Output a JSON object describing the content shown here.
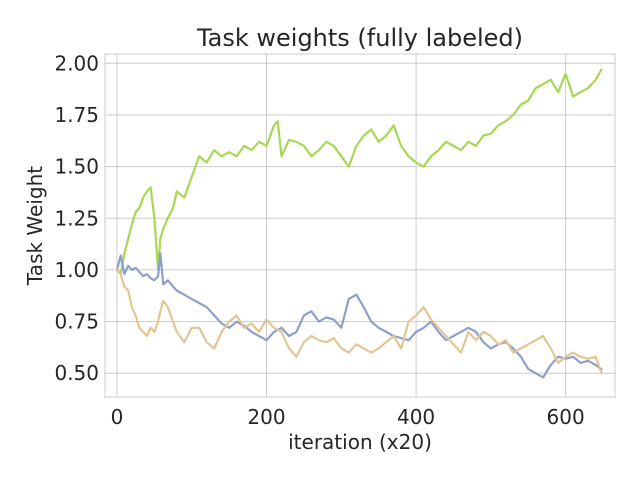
{
  "chart_data": {
    "type": "line",
    "title": "Task weights (fully labeled)",
    "xlabel": "iteration (x20)",
    "ylabel": "Task Weight",
    "xlim": [
      -16,
      666
    ],
    "ylim": [
      0.385,
      2.045
    ],
    "xticks": [
      0,
      200,
      400,
      600
    ],
    "xtick_labels": [
      "0",
      "200",
      "400",
      "600"
    ],
    "yticks": [
      0.5,
      0.75,
      1.0,
      1.25,
      1.5,
      1.75,
      2.0
    ],
    "ytick_labels": [
      "0.50",
      "0.75",
      "1.00",
      "1.25",
      "1.50",
      "1.75",
      "2.00"
    ],
    "grid": true,
    "series": [
      {
        "color": "#a6d854",
        "x": [
          0,
          5,
          10,
          15,
          20,
          25,
          30,
          35,
          40,
          45,
          50,
          55,
          58,
          62,
          68,
          75,
          80,
          90,
          100,
          110,
          120,
          130,
          140,
          150,
          160,
          170,
          180,
          190,
          200,
          210,
          215,
          220,
          230,
          240,
          250,
          260,
          270,
          280,
          290,
          300,
          310,
          320,
          330,
          340,
          350,
          360,
          370,
          380,
          390,
          400,
          410,
          420,
          430,
          440,
          450,
          460,
          470,
          480,
          490,
          500,
          510,
          520,
          530,
          540,
          550,
          560,
          570,
          580,
          590,
          600,
          610,
          620,
          630,
          640,
          648
        ],
        "y": [
          1.0,
          0.98,
          1.08,
          1.15,
          1.22,
          1.28,
          1.3,
          1.35,
          1.38,
          1.4,
          1.25,
          1.0,
          1.15,
          1.2,
          1.25,
          1.3,
          1.38,
          1.35,
          1.45,
          1.55,
          1.52,
          1.58,
          1.55,
          1.57,
          1.55,
          1.6,
          1.58,
          1.62,
          1.6,
          1.7,
          1.72,
          1.55,
          1.63,
          1.62,
          1.6,
          1.55,
          1.58,
          1.62,
          1.6,
          1.55,
          1.5,
          1.6,
          1.65,
          1.68,
          1.62,
          1.65,
          1.7,
          1.6,
          1.55,
          1.52,
          1.5,
          1.55,
          1.58,
          1.62,
          1.6,
          1.58,
          1.62,
          1.6,
          1.65,
          1.66,
          1.7,
          1.72,
          1.75,
          1.8,
          1.82,
          1.88,
          1.9,
          1.92,
          1.86,
          1.95,
          1.84,
          1.86,
          1.88,
          1.92,
          1.97
        ]
      },
      {
        "color": "#8da0cb",
        "x": [
          0,
          5,
          10,
          15,
          20,
          25,
          30,
          35,
          40,
          45,
          50,
          55,
          58,
          62,
          68,
          75,
          80,
          90,
          100,
          110,
          120,
          130,
          140,
          150,
          160,
          170,
          180,
          190,
          200,
          210,
          220,
          230,
          240,
          250,
          260,
          270,
          280,
          290,
          300,
          310,
          320,
          330,
          340,
          350,
          360,
          370,
          380,
          390,
          400,
          410,
          420,
          430,
          440,
          450,
          460,
          470,
          480,
          490,
          500,
          510,
          520,
          530,
          540,
          550,
          560,
          570,
          580,
          590,
          600,
          610,
          620,
          630,
          640,
          648
        ],
        "y": [
          1.0,
          1.07,
          0.98,
          1.02,
          1.0,
          1.01,
          0.99,
          0.97,
          0.98,
          0.96,
          0.95,
          0.97,
          1.08,
          0.93,
          0.95,
          0.92,
          0.9,
          0.88,
          0.86,
          0.84,
          0.82,
          0.78,
          0.74,
          0.72,
          0.75,
          0.73,
          0.7,
          0.68,
          0.66,
          0.7,
          0.72,
          0.68,
          0.7,
          0.78,
          0.8,
          0.75,
          0.77,
          0.76,
          0.72,
          0.86,
          0.88,
          0.82,
          0.75,
          0.72,
          0.7,
          0.68,
          0.67,
          0.66,
          0.7,
          0.72,
          0.75,
          0.7,
          0.66,
          0.68,
          0.7,
          0.72,
          0.7,
          0.65,
          0.62,
          0.64,
          0.65,
          0.62,
          0.58,
          0.52,
          0.5,
          0.48,
          0.54,
          0.58,
          0.57,
          0.58,
          0.55,
          0.56,
          0.54,
          0.52
        ]
      },
      {
        "color": "#e5c494",
        "x": [
          0,
          5,
          10,
          15,
          20,
          25,
          30,
          35,
          40,
          45,
          50,
          55,
          58,
          62,
          68,
          75,
          80,
          90,
          100,
          110,
          120,
          130,
          140,
          150,
          160,
          170,
          180,
          190,
          200,
          210,
          220,
          230,
          240,
          250,
          260,
          270,
          280,
          290,
          300,
          310,
          320,
          330,
          340,
          350,
          360,
          370,
          380,
          390,
          400,
          410,
          420,
          430,
          440,
          450,
          460,
          470,
          480,
          490,
          500,
          510,
          520,
          530,
          540,
          550,
          560,
          570,
          580,
          590,
          600,
          610,
          620,
          630,
          640,
          648
        ],
        "y": [
          1.0,
          0.98,
          0.92,
          0.9,
          0.82,
          0.78,
          0.72,
          0.7,
          0.68,
          0.72,
          0.7,
          0.75,
          0.8,
          0.85,
          0.82,
          0.75,
          0.7,
          0.65,
          0.72,
          0.72,
          0.65,
          0.62,
          0.7,
          0.75,
          0.78,
          0.72,
          0.74,
          0.7,
          0.76,
          0.72,
          0.7,
          0.62,
          0.58,
          0.65,
          0.68,
          0.66,
          0.65,
          0.67,
          0.62,
          0.6,
          0.64,
          0.62,
          0.6,
          0.62,
          0.65,
          0.68,
          0.62,
          0.75,
          0.78,
          0.82,
          0.76,
          0.72,
          0.68,
          0.64,
          0.6,
          0.7,
          0.66,
          0.7,
          0.68,
          0.64,
          0.66,
          0.6,
          0.62,
          0.64,
          0.66,
          0.68,
          0.62,
          0.55,
          0.58,
          0.6,
          0.58,
          0.57,
          0.58,
          0.5
        ]
      }
    ]
  }
}
